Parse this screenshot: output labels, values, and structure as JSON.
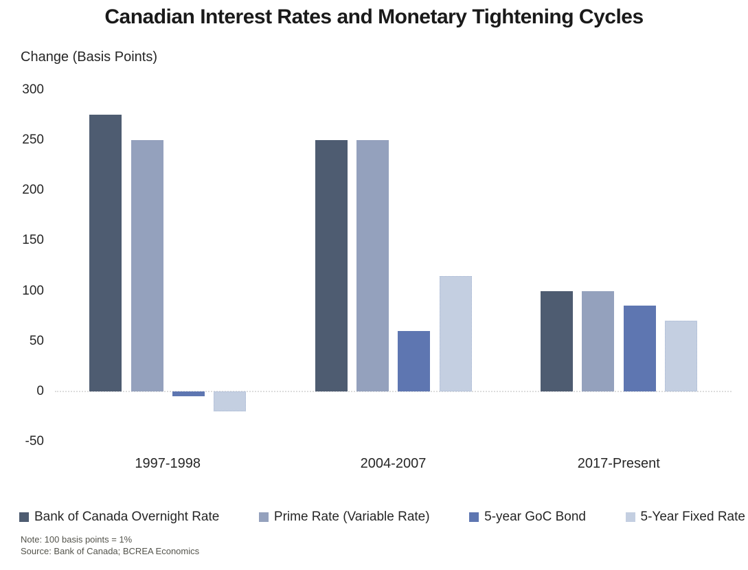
{
  "chart_data": {
    "type": "bar",
    "title": "Canadian Interest Rates and Monetary Tightening Cycles",
    "ylabel": "Change (Basis Points)",
    "xlabel": "",
    "categories": [
      "1997-1998",
      "2004-2007",
      "2017-Present"
    ],
    "series": [
      {
        "name": "Bank of Canada Overnight Rate",
        "color": "#4e5c71",
        "values": [
          275,
          250,
          100
        ]
      },
      {
        "name": "Prime Rate (Variable Rate)",
        "color": "#94a1bd",
        "values": [
          250,
          250,
          100
        ]
      },
      {
        "name": "5-year GoC Bond",
        "color": "#5e76b1",
        "values": [
          -5,
          60,
          85
        ]
      },
      {
        "name": "5-Year Fixed Rate",
        "color": "#c4cfe1",
        "values": [
          -20,
          115,
          70
        ]
      }
    ],
    "ylim": [
      -50,
      300
    ],
    "yticks": [
      300,
      250,
      200,
      150,
      100,
      50,
      0,
      -50
    ],
    "grid": "zero-line-only",
    "legend_position": "bottom",
    "notes": [
      "Note: 100 basis points = 1%",
      "Source: Bank of Canada; BCREA Economics"
    ]
  }
}
